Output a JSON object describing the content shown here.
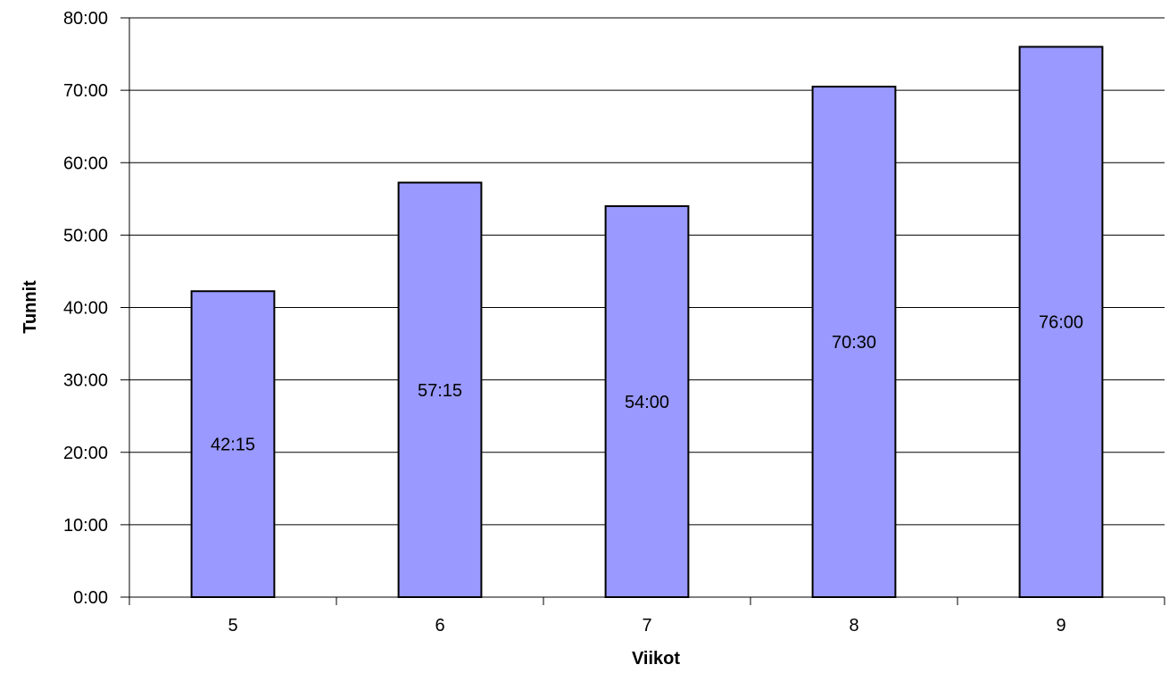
{
  "chart_data": {
    "type": "bar",
    "title": "",
    "xlabel": "Viikot",
    "ylabel": "Tunnit",
    "categories": [
      "5",
      "6",
      "7",
      "8",
      "9"
    ],
    "values": [
      42.25,
      57.25,
      54,
      70.5,
      76
    ],
    "value_labels": [
      "42:15",
      "57:15",
      "54:00",
      "70:30",
      "76:00"
    ],
    "ylim": [
      0,
      80
    ],
    "yticks": [
      0,
      10,
      20,
      30,
      40,
      50,
      60,
      70,
      80
    ],
    "ytick_labels": [
      "0:00",
      "10:00",
      "20:00",
      "30:00",
      "40:00",
      "50:00",
      "60:00",
      "70:00",
      "80:00"
    ],
    "grid": true,
    "legend": "none",
    "bar_color": "#9999ff",
    "bar_edge_color": "#000000"
  }
}
